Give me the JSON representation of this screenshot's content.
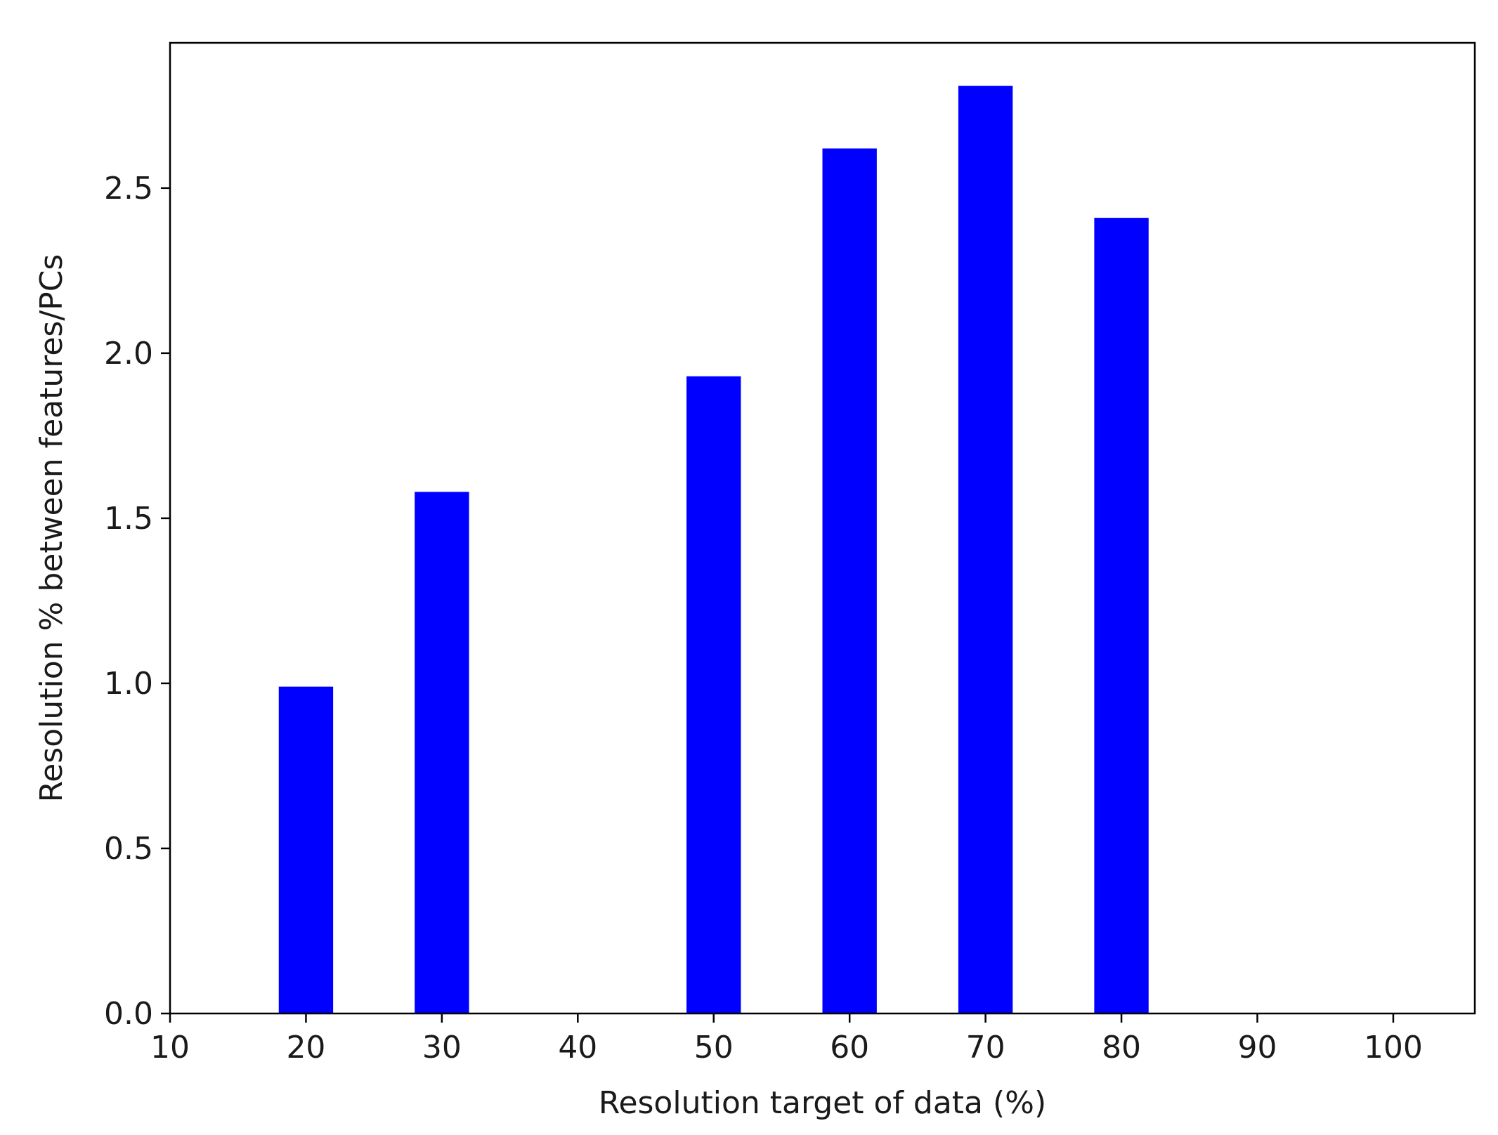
{
  "chart_data": {
    "type": "bar",
    "title": "",
    "xlabel": "Resolution target of data (%)",
    "ylabel": "Resolution % between features/PCs",
    "x": [
      20,
      30,
      50,
      60,
      70,
      80
    ],
    "values": [
      0.99,
      1.58,
      1.93,
      2.62,
      2.81,
      2.41
    ],
    "bar_width": 4,
    "xlim": [
      10,
      106
    ],
    "ylim": [
      0,
      2.94
    ],
    "xticks": [
      10,
      20,
      30,
      40,
      50,
      60,
      70,
      80,
      90,
      100
    ],
    "xtick_labels": [
      "10",
      "20",
      "30",
      "40",
      "50",
      "60",
      "70",
      "80",
      "90",
      "100"
    ],
    "yticks": [
      0,
      0.5,
      1,
      1.5,
      2,
      2.5
    ],
    "ytick_labels": [
      "0.0",
      "0.5",
      "1.0",
      "1.5",
      "2.0",
      "2.5"
    ],
    "bar_color": "#0000ff",
    "grid": false,
    "legend": "none"
  }
}
